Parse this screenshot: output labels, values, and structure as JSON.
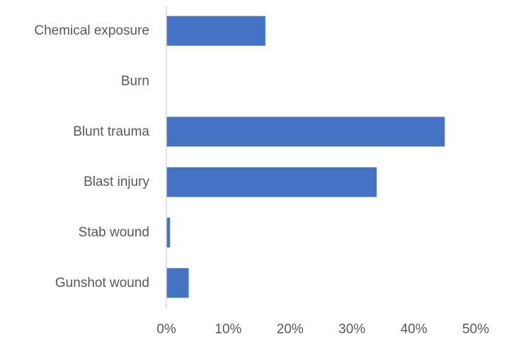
{
  "chart_data": {
    "type": "bar",
    "orientation": "horizontal",
    "categories": [
      "Chemical exposure",
      "Burn",
      "Blunt trauma",
      "Blast injury",
      "Stab wound",
      "Gunshot wound"
    ],
    "values": [
      16,
      0,
      45,
      34,
      0.6,
      3.6
    ],
    "value_unit": "%",
    "xlim": [
      0,
      50
    ],
    "xticks": [
      0,
      10,
      20,
      30,
      40,
      50
    ],
    "xtick_labels": [
      "0%",
      "10%",
      "20%",
      "30%",
      "40%",
      "50%"
    ],
    "title": "",
    "xlabel": "",
    "ylabel": "",
    "grid": false,
    "legend": "none",
    "bar_color": "#4472c4",
    "axis_color": "#d9d9d9",
    "label_color": "#595959"
  }
}
